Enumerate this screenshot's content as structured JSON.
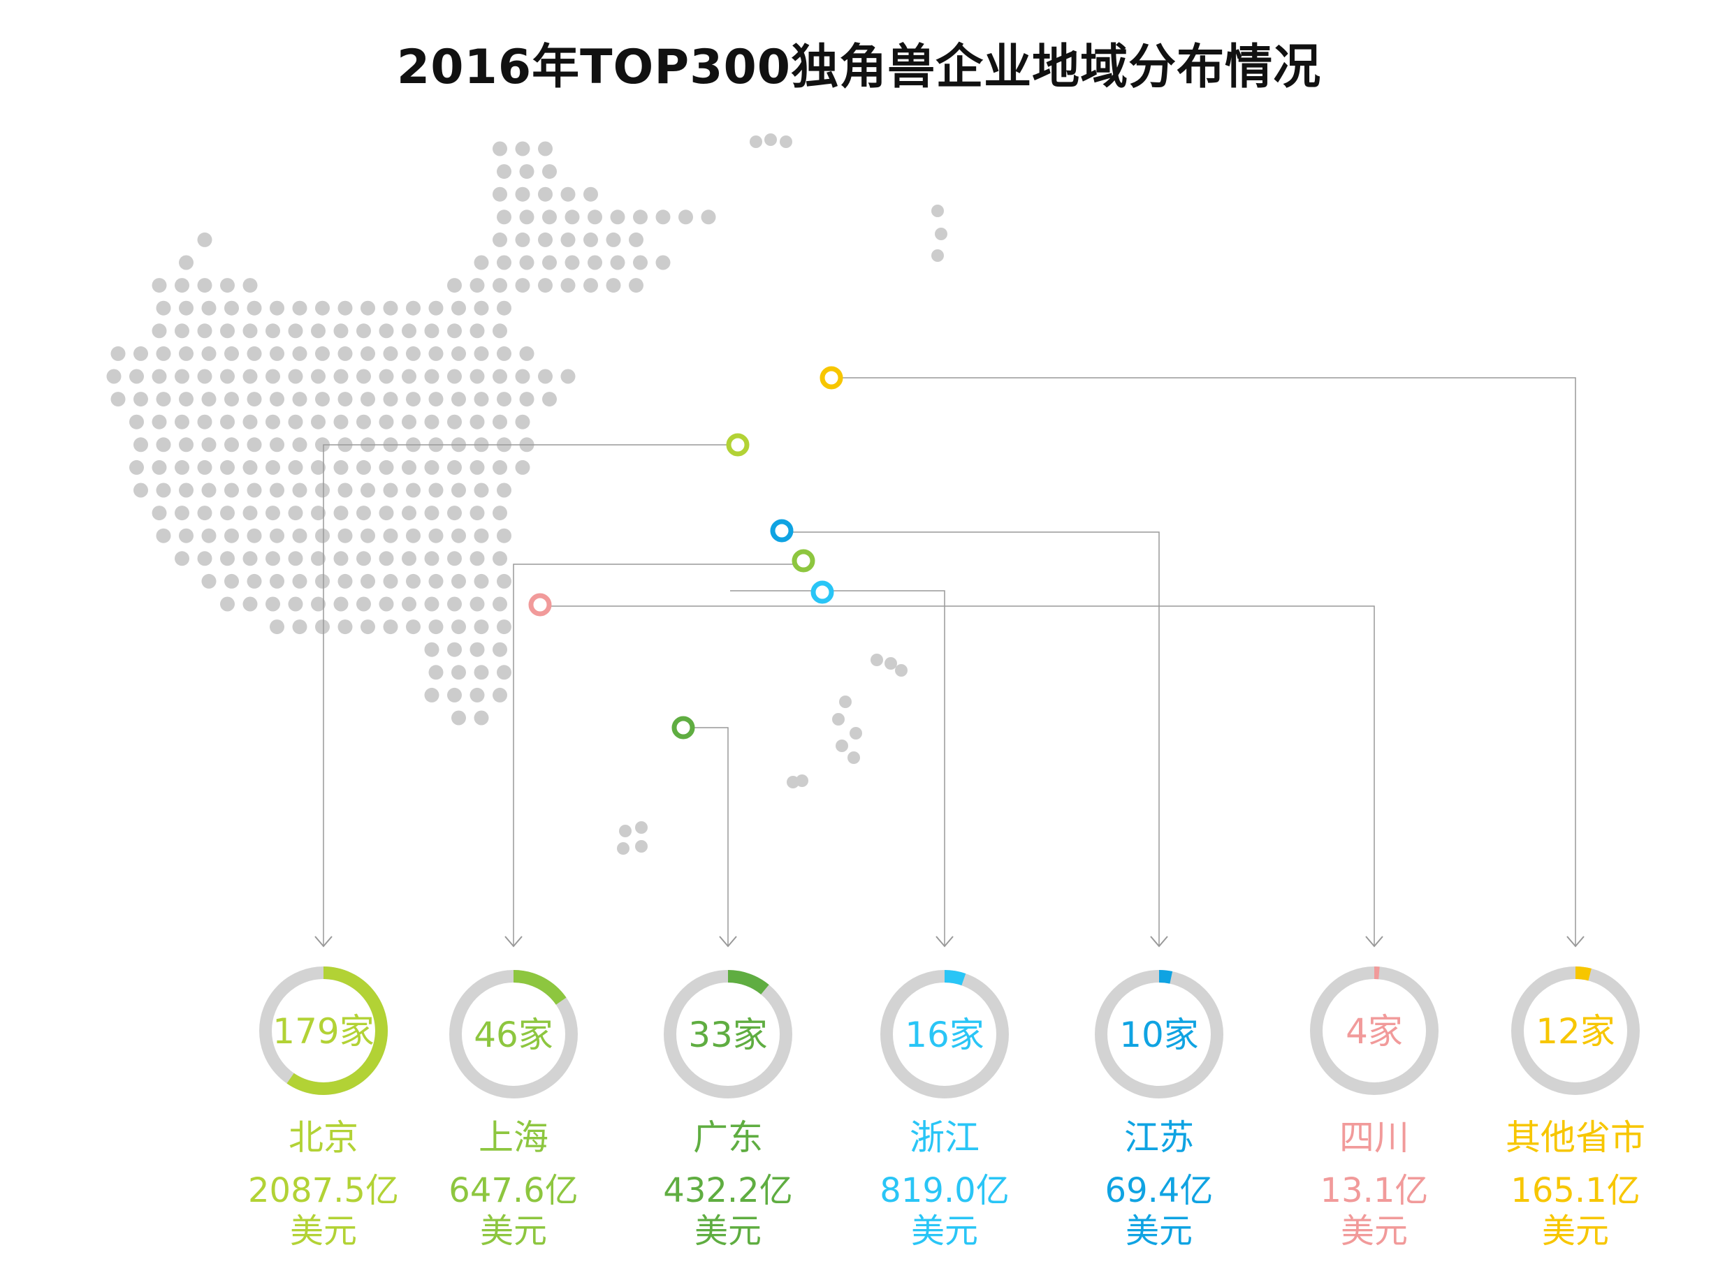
{
  "title": "2016年TOP300独角兽企业地域分布情况",
  "colors": {
    "map_dot": "#cccccc",
    "ring_track": "#d3d3d3",
    "connector": "#999999"
  },
  "chart_data": {
    "type": "donut",
    "title": "2016年TOP300独角兽企业地域分布情况",
    "total": 300,
    "count_unit": "家",
    "amount_unit": "美元",
    "series": [
      {
        "name": "北京",
        "count": 179,
        "count_label": "179家",
        "amount": 2087.5,
        "amount_label": "2087.5亿",
        "currency_label": "美元",
        "color": "#b2d235"
      },
      {
        "name": "上海",
        "count": 46,
        "count_label": "46家",
        "amount": 647.6,
        "amount_label": "647.6亿",
        "currency_label": "美元",
        "color": "#8dc63f"
      },
      {
        "name": "广东",
        "count": 33,
        "count_label": "33家",
        "amount": 432.2,
        "amount_label": "432.2亿",
        "currency_label": "美元",
        "color": "#5fad41"
      },
      {
        "name": "浙江",
        "count": 16,
        "count_label": "16家",
        "amount": 819.0,
        "amount_label": "819.0亿",
        "currency_label": "美元",
        "color": "#29c5f6"
      },
      {
        "name": "江苏",
        "count": 10,
        "count_label": "10家",
        "amount": 69.4,
        "amount_label": "69.4亿",
        "currency_label": "美元",
        "color": "#0fa3e2"
      },
      {
        "name": "四川",
        "count": 4,
        "count_label": "4家",
        "amount": 13.1,
        "amount_label": "13.1亿",
        "currency_label": "美元",
        "color": "#f19a9a"
      },
      {
        "name": "其他省市",
        "count": 12,
        "count_label": "12家",
        "amount": 165.1,
        "amount_label": "165.1亿",
        "currency_label": "美元",
        "color": "#f7c600"
      }
    ]
  }
}
